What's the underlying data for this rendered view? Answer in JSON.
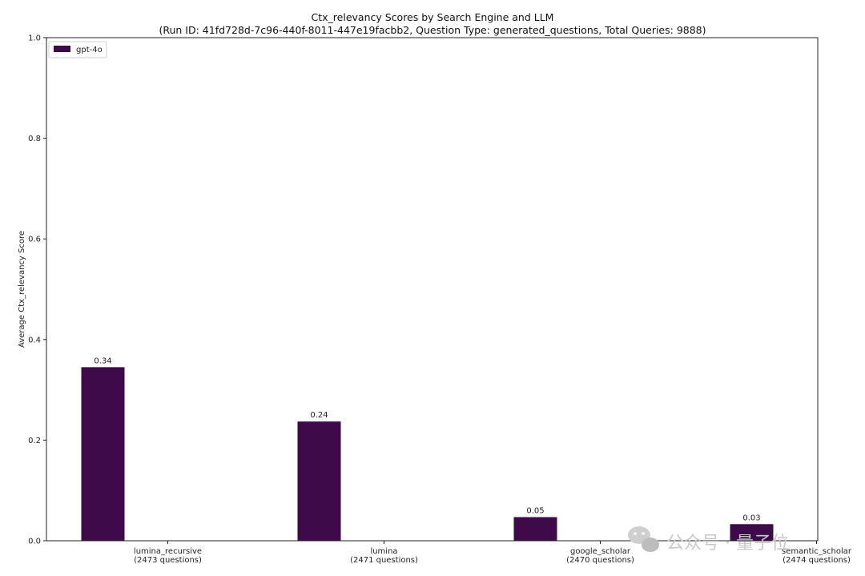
{
  "chart_data": {
    "type": "bar",
    "title": "Ctx_relevancy Scores by Search Engine and LLM",
    "subtitle": "(Run ID: 41fd728d-7c96-440f-8011-447e19facbb2, Question Type: generated_questions, Total Queries: 9888)",
    "xlabel": "",
    "ylabel": "Average Ctx_relevancy Score",
    "ylim": [
      0,
      1.0
    ],
    "yticks": [
      "0.0",
      "0.2",
      "0.4",
      "0.6",
      "0.8",
      "1.0"
    ],
    "categories": [
      {
        "name": "lumina_recursive",
        "count": "(2473 questions)"
      },
      {
        "name": "lumina",
        "count": "(2471 questions)"
      },
      {
        "name": "google_scholar",
        "count": "(2470 questions)"
      },
      {
        "name": "semantic_scholar",
        "count": "(2474 questions)"
      }
    ],
    "series": [
      {
        "name": "gpt-4o",
        "values": [
          0.345,
          0.237,
          0.047,
          0.033
        ],
        "labels": [
          "0.34",
          "0.24",
          "0.05",
          "0.03"
        ]
      }
    ],
    "legend_position": "top-left",
    "grid": false,
    "bar_color": "#3f0a4a"
  },
  "watermark": "公众号 · 量子位"
}
